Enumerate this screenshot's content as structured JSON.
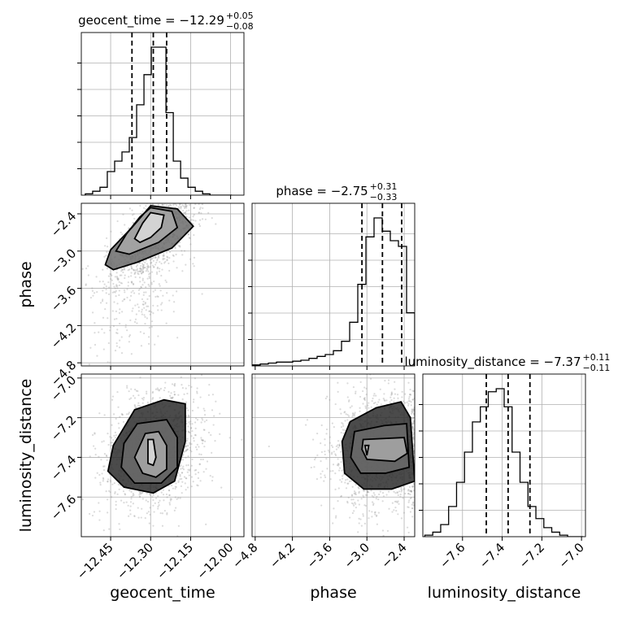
{
  "chart_data": {
    "type": "scatter",
    "subtype": "corner-plot",
    "grid": true,
    "parameters": [
      {
        "name": "geocent_time",
        "xlabel": "geocent_time",
        "ylabel": "",
        "title": {
          "main": "geocent_time = −12.29",
          "upper": "+0.05",
          "lower": "−0.08"
        },
        "median": -12.29,
        "quantiles": [
          -12.37,
          -12.29,
          -12.24
        ],
        "range": [
          -12.56,
          -11.95
        ],
        "ticks": [
          -12.45,
          -12.3,
          -12.15,
          -12.0
        ],
        "tick_labels": [
          "−12.45",
          "−12.30",
          "−12.15",
          "−12.00"
        ],
        "hist_edges_start": -12.545,
        "hist_bin_width": 0.0275,
        "hist_counts": [
          1,
          3,
          6,
          18,
          26,
          33,
          44,
          69,
          92,
          113,
          113,
          63,
          26,
          13,
          6,
          3,
          1,
          0,
          0,
          0
        ]
      },
      {
        "name": "phase",
        "xlabel": "phase",
        "ylabel": "phase",
        "title": {
          "main": "phase = −2.75",
          "upper": "+0.31",
          "lower": "−0.33"
        },
        "median": -2.75,
        "quantiles": [
          -3.08,
          -2.75,
          -2.44
        ],
        "range": [
          -4.85,
          -2.23
        ],
        "ticks": [
          -4.8,
          -4.2,
          -3.6,
          -3.0,
          -2.4
        ],
        "tick_labels": [
          "−4.8",
          "−4.2",
          "−3.6",
          "−3.0",
          "−2.4"
        ],
        "hist_edges_start": -4.85,
        "hist_bin_width": 0.131,
        "hist_counts": [
          1,
          2,
          3,
          4,
          4,
          5,
          6,
          8,
          10,
          12,
          16,
          26,
          46,
          86,
          136,
          156,
          142,
          132,
          126,
          56
        ]
      },
      {
        "name": "luminosity_distance",
        "xlabel": "luminosity_distance",
        "ylabel": "luminosity_distance",
        "title": {
          "main": "luminosity_distance = −7.37",
          "upper": "+0.11",
          "lower": "−0.11"
        },
        "median": -7.37,
        "quantiles": [
          -7.48,
          -7.37,
          -7.26
        ],
        "range": [
          -7.8,
          -6.98
        ],
        "ticks": [
          -7.6,
          -7.4,
          -7.2,
          -7.0
        ],
        "tick_labels": [
          "−7.6",
          "−7.4",
          "−7.2",
          "−7.0"
        ],
        "hist_edges_start": -7.79,
        "hist_bin_width": 0.04,
        "hist_counts": [
          1,
          3,
          8,
          20,
          36,
          56,
          76,
          86,
          96,
          98,
          86,
          56,
          36,
          20,
          12,
          6,
          3,
          1,
          0,
          0
        ]
      }
    ],
    "contours": [
      {
        "x": "geocent_time",
        "y": "phase",
        "levels": [
          [
            [
              -12.3,
              -2.38
            ],
            [
              -12.25,
              -2.42
            ],
            [
              -12.26,
              -2.62
            ],
            [
              -12.3,
              -2.78
            ],
            [
              -12.34,
              -2.86
            ],
            [
              -12.36,
              -2.8
            ],
            [
              -12.33,
              -2.55
            ]
          ],
          [
            [
              -12.3,
              -2.3
            ],
            [
              -12.22,
              -2.36
            ],
            [
              -12.2,
              -2.62
            ],
            [
              -12.27,
              -2.86
            ],
            [
              -12.38,
              -3.05
            ],
            [
              -12.43,
              -3.0
            ],
            [
              -12.39,
              -2.72
            ],
            [
              -12.34,
              -2.45
            ]
          ],
          [
            [
              -12.3,
              -2.27
            ],
            [
              -12.2,
              -2.32
            ],
            [
              -12.14,
              -2.6
            ],
            [
              -12.22,
              -2.95
            ],
            [
              -12.35,
              -3.18
            ],
            [
              -12.44,
              -3.3
            ],
            [
              -12.47,
              -3.22
            ],
            [
              -12.45,
              -2.98
            ],
            [
              -12.37,
              -2.62
            ]
          ]
        ]
      },
      {
        "x": "geocent_time",
        "y": "luminosity_distance",
        "levels": [
          [
            [
              -12.31,
              -7.31
            ],
            [
              -12.29,
              -7.31
            ],
            [
              -12.28,
              -7.4
            ],
            [
              -12.29,
              -7.44
            ],
            [
              -12.31,
              -7.43
            ]
          ],
          [
            [
              -12.32,
              -7.28
            ],
            [
              -12.27,
              -7.27
            ],
            [
              -12.24,
              -7.34
            ],
            [
              -12.24,
              -7.46
            ],
            [
              -12.28,
              -7.5
            ],
            [
              -12.33,
              -7.48
            ],
            [
              -12.36,
              -7.4
            ]
          ],
          [
            [
              -12.35,
              -7.23
            ],
            [
              -12.24,
              -7.21
            ],
            [
              -12.2,
              -7.3
            ],
            [
              -12.2,
              -7.45
            ],
            [
              -12.26,
              -7.53
            ],
            [
              -12.36,
              -7.53
            ],
            [
              -12.41,
              -7.45
            ],
            [
              -12.4,
              -7.33
            ]
          ],
          [
            [
              -12.36,
              -7.16
            ],
            [
              -12.25,
              -7.11
            ],
            [
              -12.17,
              -7.13
            ],
            [
              -12.17,
              -7.32
            ],
            [
              -12.21,
              -7.52
            ],
            [
              -12.29,
              -7.58
            ],
            [
              -12.4,
              -7.55
            ],
            [
              -12.46,
              -7.47
            ],
            [
              -12.44,
              -7.34
            ]
          ]
        ]
      },
      {
        "x": "phase",
        "y": "luminosity_distance",
        "levels": [
          [
            [
              -3.03,
              -7.34
            ],
            [
              -2.97,
              -7.34
            ],
            [
              -3.0,
              -7.39
            ]
          ],
          [
            [
              -3.06,
              -7.31
            ],
            [
              -2.4,
              -7.3
            ],
            [
              -2.35,
              -7.38
            ],
            [
              -2.55,
              -7.42
            ],
            [
              -3.0,
              -7.41
            ],
            [
              -3.08,
              -7.36
            ]
          ],
          [
            [
              -3.2,
              -7.27
            ],
            [
              -2.72,
              -7.24
            ],
            [
              -2.36,
              -7.23
            ],
            [
              -2.32,
              -7.45
            ],
            [
              -2.7,
              -7.48
            ],
            [
              -3.1,
              -7.48
            ],
            [
              -3.26,
              -7.4
            ]
          ],
          [
            [
              -3.27,
              -7.22
            ],
            [
              -2.85,
              -7.15
            ],
            [
              -2.45,
              -7.12
            ],
            [
              -2.3,
              -7.2
            ],
            [
              -2.23,
              -7.52
            ],
            [
              -2.6,
              -7.56
            ],
            [
              -3.05,
              -7.56
            ],
            [
              -3.36,
              -7.48
            ],
            [
              -3.4,
              -7.32
            ]
          ]
        ]
      }
    ]
  }
}
